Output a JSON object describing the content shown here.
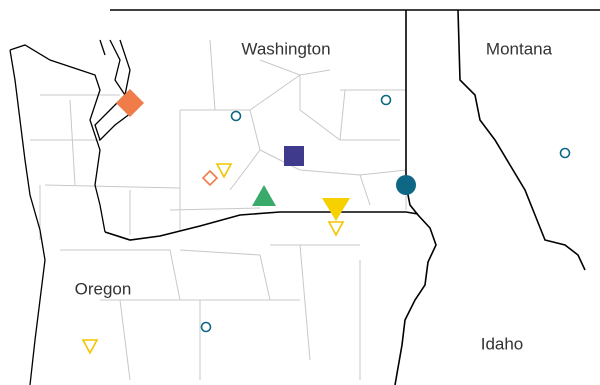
{
  "map": {
    "labels": [
      "Washington",
      "Montana",
      "Oregon",
      "Idaho"
    ]
  }
}
